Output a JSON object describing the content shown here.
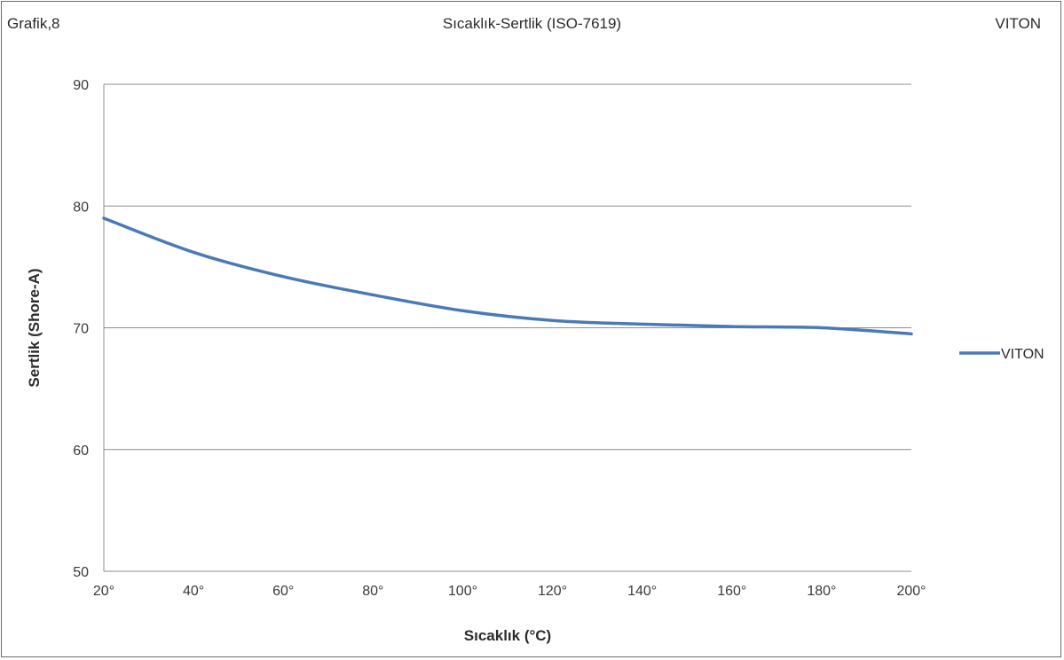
{
  "header": {
    "left": "Grafik,8",
    "center": "Sıcaklık-Sertlik (ISO-7619)",
    "right": "VITON"
  },
  "chart_data": {
    "type": "line",
    "title": "Sıcaklık-Sertlik (ISO-7619)",
    "xlabel": "Sıcaklık  (°C)",
    "ylabel": "Sertlik  (Shore-A)",
    "ylim": [
      50,
      90
    ],
    "yticks": [
      50,
      60,
      70,
      80,
      90
    ],
    "xlim": [
      20,
      200
    ],
    "xticks": [
      20,
      40,
      60,
      80,
      100,
      120,
      140,
      160,
      180,
      200
    ],
    "xtick_labels": [
      "20°",
      "40°",
      "60°",
      "80°",
      "100°",
      "120°",
      "140°",
      "160°",
      "180°",
      "200°"
    ],
    "grid": "horizontal",
    "legend": "right",
    "colors": {
      "series": "#4a7ab6",
      "grid": "#8c8c8c"
    },
    "series": [
      {
        "name": "VITON",
        "x": [
          20,
          40,
          60,
          80,
          100,
          120,
          140,
          160,
          180,
          200
        ],
        "y": [
          79.0,
          76.2,
          74.2,
          72.7,
          71.4,
          70.6,
          70.3,
          70.1,
          70.0,
          69.5
        ]
      }
    ]
  }
}
